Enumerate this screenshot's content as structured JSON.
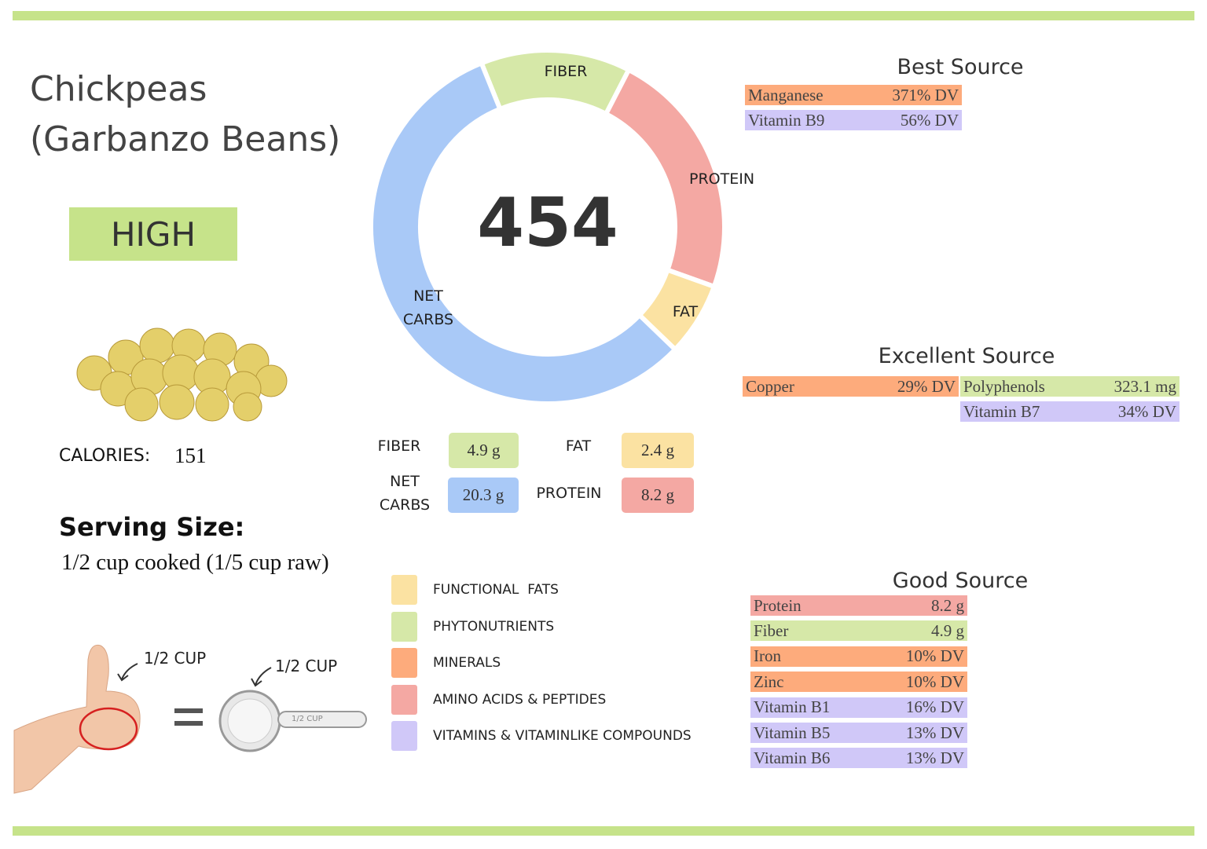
{
  "header": {
    "title_line1": "Chickpeas",
    "title_line2": "(Garbanzo Beans)"
  },
  "rating": "HIGH",
  "calories": {
    "label": "CALORIES:",
    "value": 151
  },
  "serving": {
    "title": "Serving Size:",
    "text": "1/2 cup cooked (1/5 cup raw)"
  },
  "illustration": {
    "hand_label": "1/2 CUP",
    "cup_label": "1/2 CUP",
    "cup_handle_label": "1/2 CUP"
  },
  "chart_data": {
    "type": "donut",
    "center_value": 454,
    "categories": [
      "FIBER",
      "PROTEIN",
      "FAT",
      "NET CARBS"
    ],
    "values": [
      4.9,
      8.2,
      2.4,
      20.3
    ],
    "value_labels": [
      "4.9 g",
      "8.2 g",
      "2.4 g",
      "20.3 g"
    ],
    "colors": [
      "#d6e8a8",
      "#f4a8a3",
      "#fbe2a2",
      "#a9c9f7"
    ]
  },
  "legend": [
    {
      "label": "FUNCTIONAL  FATS",
      "color": "#fbe2a2"
    },
    {
      "label": "PHYTONUTRIENTS",
      "color": "#d6e8a8"
    },
    {
      "label": "MINERALS",
      "color": "#fdab7c"
    },
    {
      "label": "AMINO ACIDS & PEPTIDES",
      "color": "#f4a8a3"
    },
    {
      "label": "VITAMINS & VITAMINLIKE COMPOUNDS",
      "color": "#d0c8f8"
    }
  ],
  "sources": {
    "best": {
      "title": "Best Source",
      "columns": [
        [
          {
            "name": "Manganese",
            "value": "371% DV",
            "color": "#fdab7c"
          },
          {
            "name": "Vitamin B9",
            "value": "56% DV",
            "color": "#d0c8f8"
          }
        ]
      ]
    },
    "excellent": {
      "title": "Excellent Source",
      "columns": [
        [
          {
            "name": "Copper",
            "value": "29% DV",
            "color": "#fdab7c"
          }
        ],
        [
          {
            "name": "Polyphenols",
            "value": "323.1 mg",
            "color": "#d6e8a8"
          },
          {
            "name": "Vitamin B7",
            "value": "34% DV",
            "color": "#d0c8f8"
          }
        ]
      ]
    },
    "good": {
      "title": "Good Source",
      "columns": [
        [
          {
            "name": "Protein",
            "value": "8.2 g",
            "color": "#f4a8a3"
          },
          {
            "name": "Fiber",
            "value": "4.9 g",
            "color": "#d6e8a8"
          },
          {
            "name": "Iron",
            "value": "10% DV",
            "color": "#fdab7c"
          },
          {
            "name": "Zinc",
            "value": "10% DV",
            "color": "#fdab7c"
          },
          {
            "name": "Vitamin B1",
            "value": "16% DV",
            "color": "#d0c8f8"
          },
          {
            "name": "Vitamin B5",
            "value": "13% DV",
            "color": "#d0c8f8"
          },
          {
            "name": "Vitamin B6",
            "value": "13% DV",
            "color": "#d0c8f8"
          }
        ]
      ]
    }
  }
}
